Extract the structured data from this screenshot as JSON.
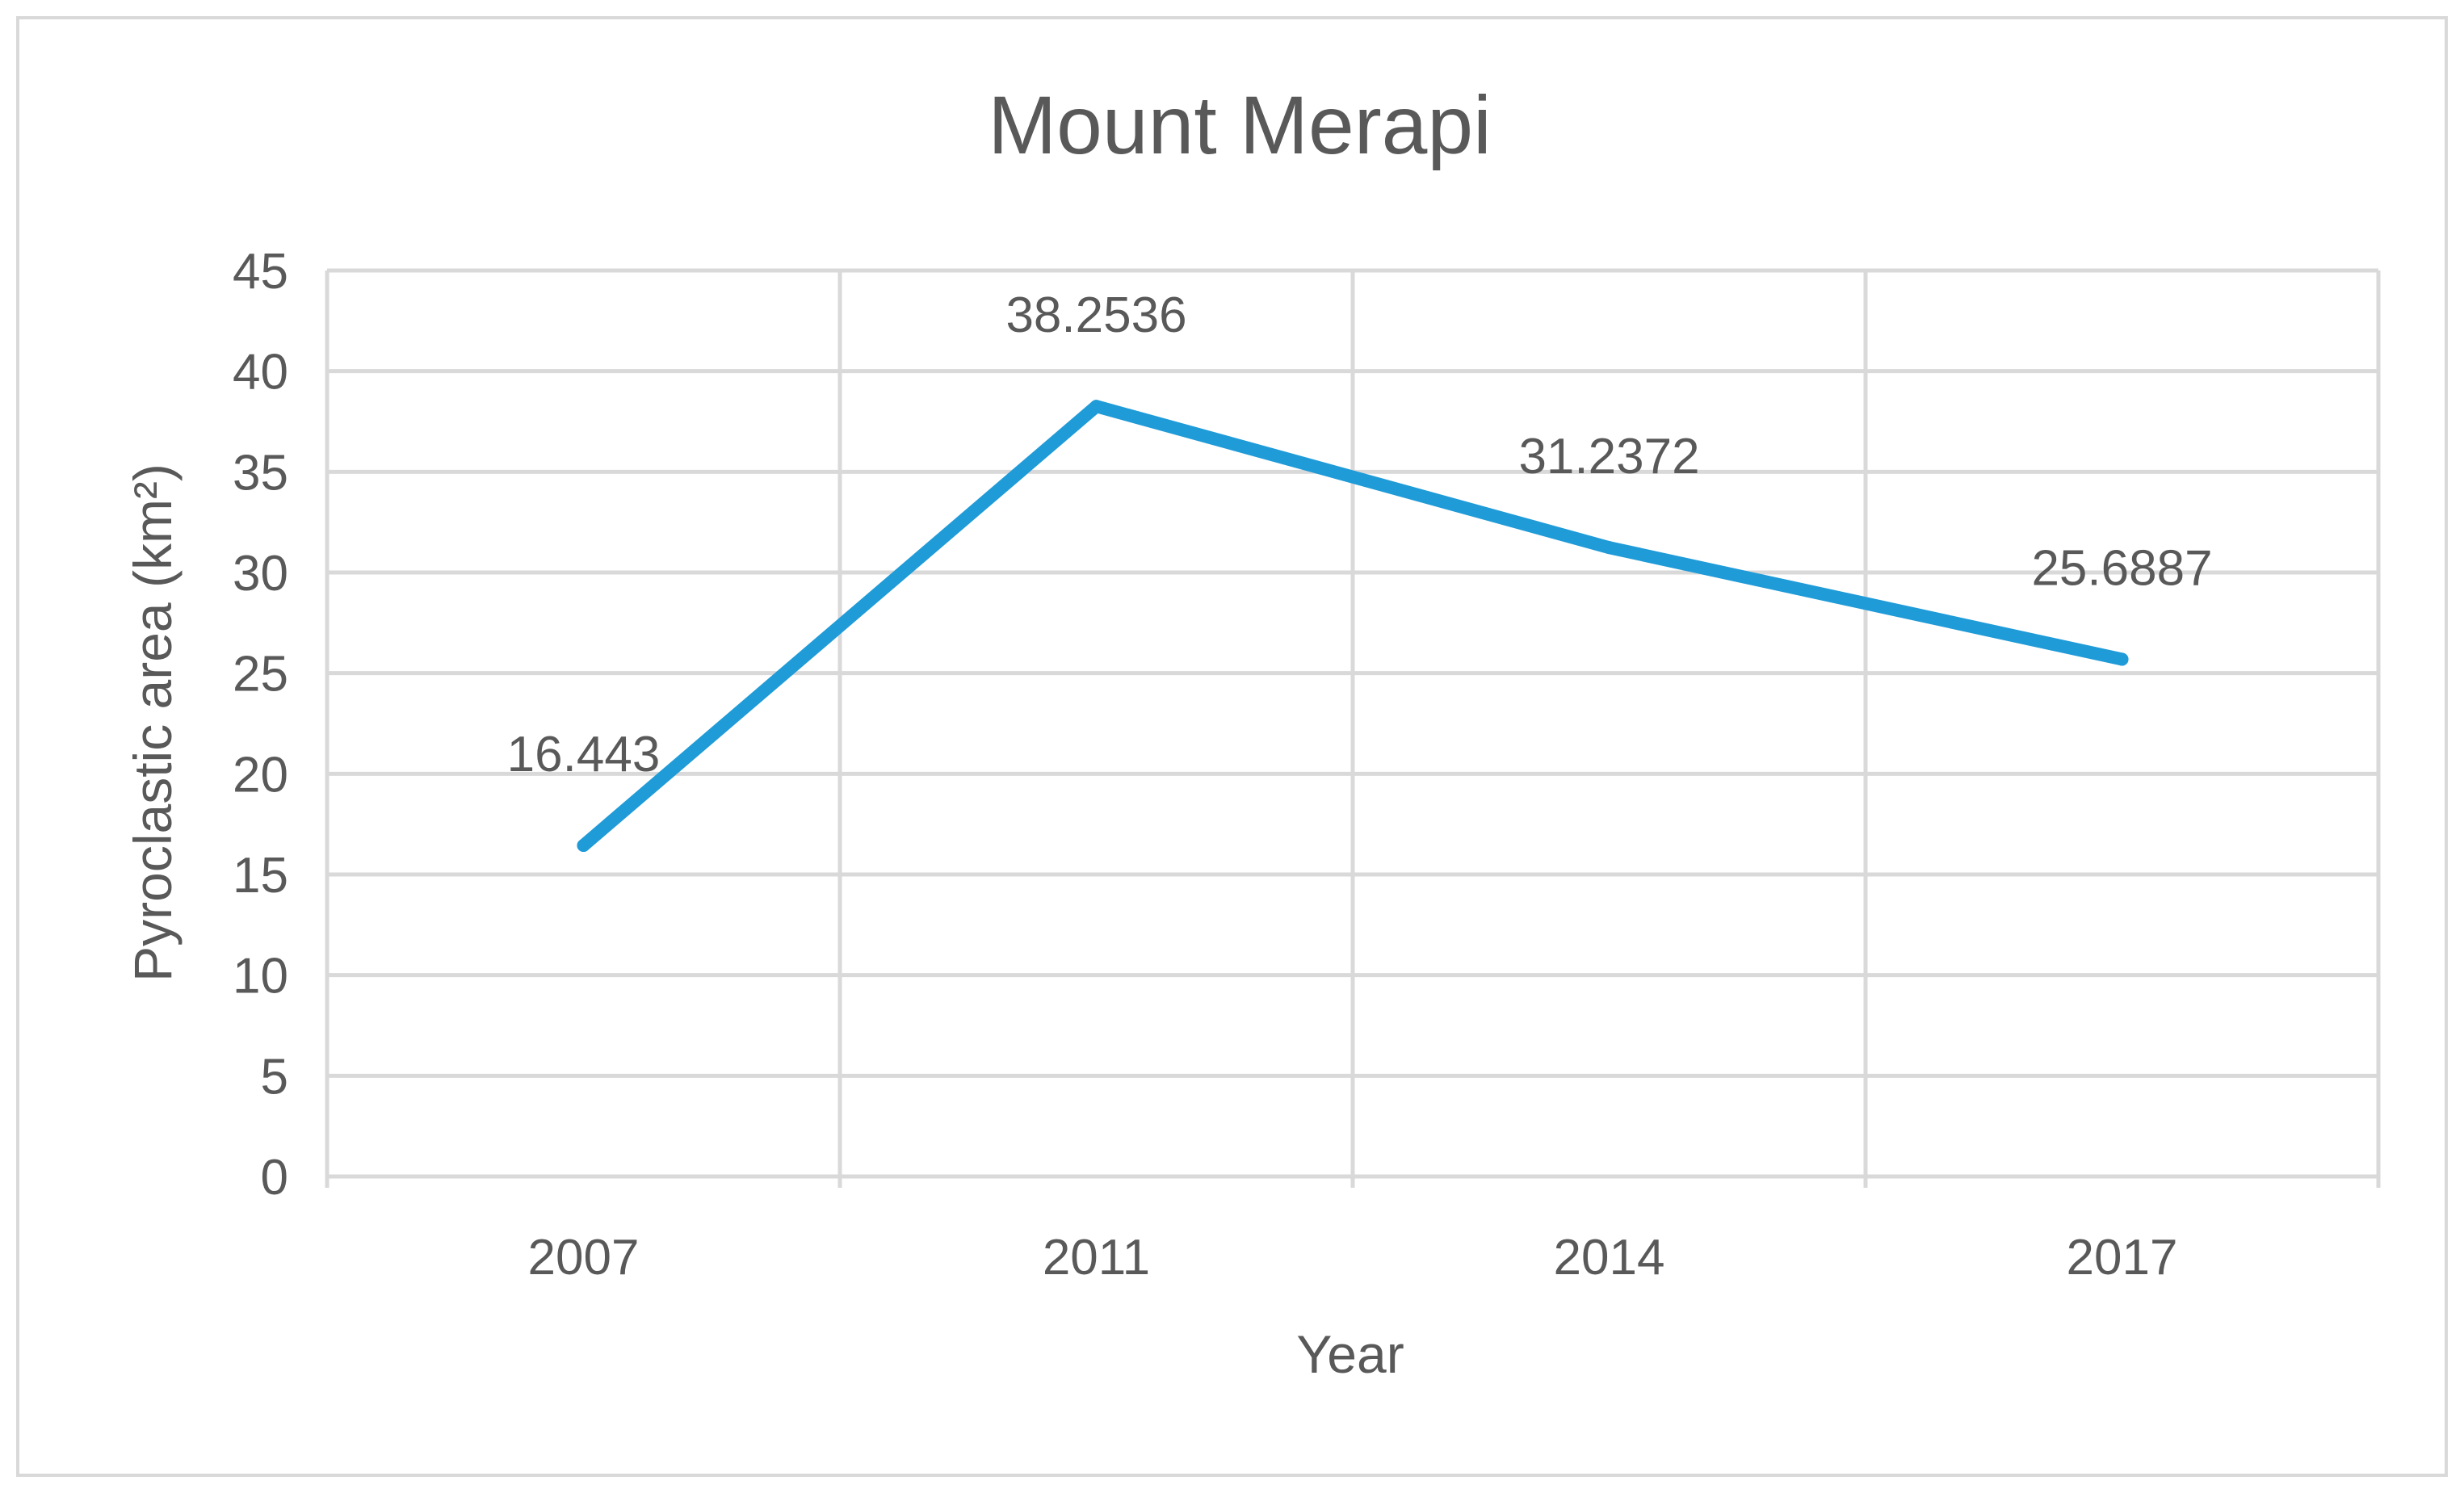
{
  "chart_data": {
    "type": "line",
    "title": "Mount Merapi",
    "xlabel": "Year",
    "ylabel": "Pyroclastic area (km²)",
    "categories": [
      "2007",
      "2011",
      "2014",
      "2017"
    ],
    "series": [
      {
        "values": [
          16.443,
          38.2536,
          31.2372,
          25.6887
        ]
      }
    ],
    "data_labels": [
      "16.443",
      "38.2536",
      "31.2372",
      "25.6887"
    ],
    "ylim": [
      0,
      45
    ],
    "yticks": [
      "0",
      "5",
      "10",
      "15",
      "20",
      "25",
      "30",
      "35",
      "40",
      "45"
    ],
    "grid": true,
    "legend": "none",
    "colors": {
      "line": "#1f9bd8",
      "grid": "#d9d9d9",
      "text": "#595959",
      "border": "#d9d9d9"
    }
  }
}
